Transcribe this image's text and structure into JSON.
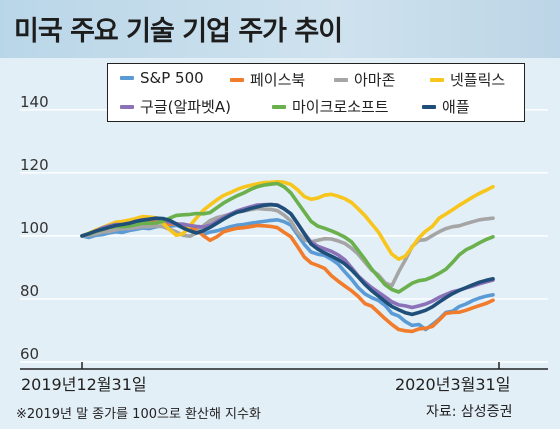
{
  "header": {
    "title": "미국 주요 기술 기업 주가 추이"
  },
  "chart_data": {
    "type": "line",
    "ylim": [
      60,
      145
    ],
    "yticks": [
      60,
      80,
      100,
      120,
      140
    ],
    "x_start": "2019년12월31일",
    "x_end": "2020년3월31일",
    "legend_position": "top",
    "grid": "horizontal",
    "x": [
      0,
      1,
      2,
      3,
      4,
      5,
      6,
      7,
      8,
      9,
      10,
      11,
      12,
      13,
      14,
      15,
      16,
      17,
      18,
      19,
      20,
      21,
      22,
      23,
      24,
      25,
      26,
      27,
      28,
      29,
      30,
      31,
      32,
      33,
      34,
      35,
      36,
      37,
      38,
      39,
      40,
      41,
      42,
      43,
      44,
      45,
      46,
      47,
      48,
      49,
      50,
      51,
      52,
      53,
      54,
      55,
      56,
      57,
      58,
      59,
      60,
      61
    ],
    "series": [
      {
        "name": "S&P 500",
        "color": "#5b9bd5",
        "values": [
          100,
          99.5,
          100.2,
          100.4,
          100.9,
          101.3,
          101.1,
          101.7,
          102.1,
          102.5,
          102.3,
          102.9,
          103.2,
          103.0,
          103.4,
          102.6,
          102.1,
          101.4,
          100.5,
          101.2,
          101.6,
          102.2,
          102.9,
          103.4,
          103.6,
          104.0,
          104.3,
          104.6,
          104.9,
          105.1,
          104.5,
          103.4,
          100.3,
          97.3,
          94.9,
          94.2,
          93.8,
          92.6,
          91.1,
          88.6,
          86.3,
          83.6,
          81.6,
          80.4,
          79.5,
          77.9,
          75.4,
          74.6,
          72.8,
          71.6,
          71.9,
          70.3,
          71.9,
          73.6,
          75.7,
          76.1,
          77.6,
          78.4,
          79.5,
          80.3,
          80.9,
          81.3
        ]
      },
      {
        "name": "페이스북",
        "color": "#f07c2c",
        "values": [
          100,
          100.5,
          101.2,
          102.0,
          102.6,
          103.3,
          103.0,
          103.5,
          104.3,
          104.7,
          104.8,
          105.0,
          104.4,
          103.7,
          103.9,
          103.4,
          103.0,
          102.0,
          100.1,
          98.6,
          99.7,
          101.3,
          101.9,
          102.4,
          102.6,
          102.9,
          103.3,
          103.2,
          103.0,
          102.6,
          101.1,
          99.7,
          96.6,
          93.3,
          91.4,
          90.6,
          89.7,
          87.4,
          85.7,
          84.1,
          82.6,
          80.8,
          78.5,
          77.7,
          75.7,
          73.7,
          71.9,
          70.3,
          69.9,
          69.7,
          70.5,
          70.7,
          71.3,
          73.3,
          75.4,
          75.7,
          75.8,
          76.4,
          77.2,
          77.9,
          78.6,
          79.6
        ]
      },
      {
        "name": "아마존",
        "color": "#a5a5a5",
        "values": [
          100,
          100.2,
          100.6,
          101.2,
          101.4,
          101.9,
          102.3,
          102.3,
          102.6,
          102.9,
          102.9,
          103.2,
          102.9,
          102.1,
          101.3,
          100.2,
          99.9,
          100.9,
          103.2,
          104.8,
          105.8,
          106.3,
          106.9,
          107.5,
          107.9,
          108.3,
          108.7,
          108.5,
          108.4,
          108.0,
          106.6,
          104.7,
          101.1,
          98.8,
          98.1,
          98.6,
          99.1,
          99.0,
          98.4,
          97.6,
          96.1,
          94.2,
          91.6,
          89.1,
          87.6,
          85.1,
          84.2,
          88.6,
          92.4,
          96.6,
          98.6,
          98.8,
          100.1,
          101.3,
          102.3,
          102.9,
          103.2,
          103.9,
          104.5,
          105.1,
          105.4,
          105.6
        ]
      },
      {
        "name": "넷플릭스",
        "color": "#f7c51b",
        "values": [
          100,
          100.8,
          101.8,
          102.6,
          103.5,
          104.3,
          104.6,
          105.0,
          105.5,
          106.1,
          106.0,
          105.7,
          104.0,
          102.0,
          100.2,
          100.7,
          103.2,
          105.7,
          108.1,
          109.8,
          111.4,
          112.8,
          113.7,
          114.7,
          115.5,
          116.0,
          116.5,
          116.9,
          117.0,
          117.2,
          117.0,
          116.3,
          114.6,
          112.5,
          111.6,
          112.0,
          112.9,
          113.2,
          112.6,
          111.8,
          110.6,
          108.6,
          106.4,
          103.8,
          101.2,
          97.6,
          94.2,
          92.6,
          93.6,
          96.4,
          99.4,
          101.5,
          103.0,
          105.6,
          106.9,
          108.3,
          109.7,
          111.0,
          112.3,
          113.5,
          114.5,
          115.6
        ]
      },
      {
        "name": "구글(알파벳A)",
        "color": "#8a71b8",
        "values": [
          100,
          100.6,
          101.5,
          102.5,
          103.1,
          103.6,
          103.6,
          104.0,
          104.6,
          105.1,
          105.3,
          105.5,
          105.1,
          104.3,
          103.8,
          103.7,
          103.3,
          103.0,
          102.8,
          103.4,
          104.6,
          105.8,
          106.9,
          107.9,
          108.6,
          109.2,
          109.8,
          109.9,
          110.0,
          109.8,
          108.6,
          107.0,
          103.9,
          100.8,
          98.0,
          96.7,
          95.9,
          95.1,
          94.0,
          92.4,
          89.9,
          87.3,
          85.3,
          83.6,
          82.1,
          80.6,
          79.1,
          78.1,
          77.8,
          77.3,
          77.8,
          78.4,
          79.3,
          80.5,
          81.4,
          82.3,
          82.8,
          83.5,
          84.1,
          84.8,
          85.4,
          86.0
        ]
      },
      {
        "name": "마이크로소프트",
        "color": "#6ab04c",
        "values": [
          100,
          100.6,
          101.4,
          102.0,
          102.6,
          103.0,
          102.9,
          103.1,
          103.6,
          104.0,
          104.0,
          104.1,
          104.6,
          105.6,
          106.5,
          106.7,
          106.8,
          107.1,
          107.0,
          107.4,
          108.9,
          110.4,
          111.6,
          112.7,
          113.6,
          114.7,
          115.6,
          116.1,
          116.4,
          116.6,
          115.6,
          113.6,
          110.6,
          107.6,
          104.6,
          103.1,
          102.4,
          101.6,
          100.7,
          99.6,
          98.1,
          95.4,
          92.5,
          89.5,
          87.0,
          84.5,
          83.0,
          82.2,
          83.6,
          85.0,
          85.8,
          86.1,
          87.0,
          88.1,
          89.4,
          91.6,
          94.0,
          95.6,
          96.6,
          97.8,
          98.9,
          99.7
        ]
      },
      {
        "name": "애플",
        "color": "#1f4e79",
        "values": [
          100,
          100.7,
          101.5,
          102.1,
          102.7,
          103.3,
          103.6,
          104.0,
          104.6,
          105.0,
          105.3,
          105.6,
          105.5,
          104.9,
          103.8,
          102.5,
          101.6,
          100.9,
          101.6,
          102.7,
          104.0,
          105.3,
          106.5,
          107.5,
          108.0,
          108.7,
          109.2,
          109.7,
          109.9,
          109.7,
          108.6,
          107.0,
          104.0,
          100.7,
          97.4,
          95.8,
          94.6,
          93.6,
          92.5,
          91.1,
          89.2,
          87.0,
          84.6,
          82.6,
          80.9,
          79.2,
          77.6,
          76.6,
          75.6,
          75.1,
          75.7,
          76.4,
          77.5,
          79.0,
          80.4,
          81.7,
          82.7,
          83.6,
          84.5,
          85.3,
          85.9,
          86.4
        ]
      }
    ]
  },
  "footer": {
    "note": "※2019년 말 종가를 100으로 환산해 지수화",
    "source": "자료: 삼성증권"
  }
}
